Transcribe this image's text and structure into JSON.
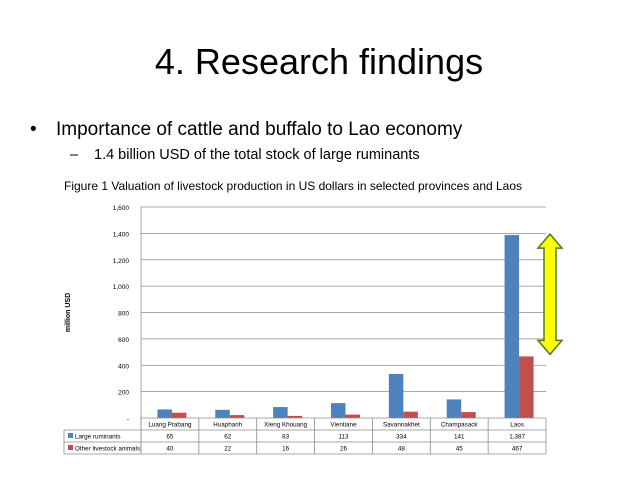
{
  "slide": {
    "title": "4. Research findings",
    "bullet_symbol": "•",
    "bullet": "Importance of cattle and buffalo to Lao economy",
    "sub_bullet_symbol": "–",
    "sub_bullet": "1.4 billion USD of the total stock of large ruminants",
    "figure_caption": "Figure 1 Valuation of livestock production in US dollars in selected provinces and Laos"
  },
  "chart_data": {
    "type": "bar",
    "ylabel": "million USD",
    "ylim": [
      0,
      1600
    ],
    "ytick_values": [
      0,
      200,
      400,
      600,
      800,
      1000,
      1200,
      1400,
      1600
    ],
    "ytick_labels": [
      "-",
      "200",
      "400",
      "600",
      "800",
      "1,000",
      "1,200",
      "1,400",
      "1,600"
    ],
    "grid": true,
    "categories": [
      "Luang Prabang",
      "Huaphanh",
      "Xieng Khouang",
      "Vientiane",
      "Savannakhet",
      "Champasack",
      "Laos"
    ],
    "series": [
      {
        "name": "Large ruminants",
        "color": "#4f81bd",
        "values": [
          65,
          62,
          83,
          113,
          334,
          141,
          1387
        ],
        "labels": [
          "65",
          "62",
          "83",
          "113",
          "334",
          "141",
          "1,387"
        ]
      },
      {
        "name": "Other livestock animals",
        "color": "#c0504d",
        "values": [
          40,
          22,
          16,
          26,
          48,
          45,
          467
        ],
        "labels": [
          "40",
          "22",
          "16",
          "26",
          "48",
          "45",
          "467"
        ]
      }
    ],
    "data_table": true,
    "annotation": {
      "shape": "double-headed-arrow",
      "fill": "#ffff00",
      "stroke": "#4f7a28",
      "spans": [
        467,
        1387
      ]
    }
  }
}
